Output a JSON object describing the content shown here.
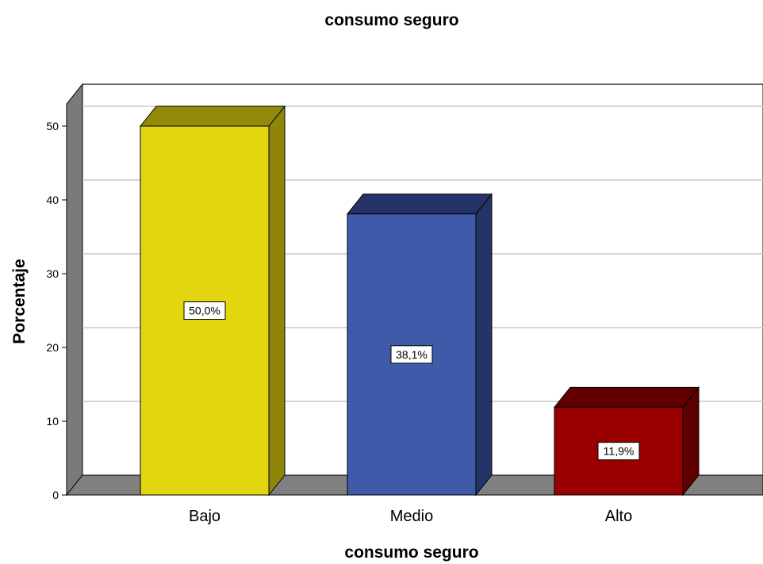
{
  "chart_data": {
    "type": "bar",
    "title": "consumo seguro",
    "xlabel": "consumo seguro",
    "ylabel": "Porcentaje",
    "categories": [
      "Bajo",
      "Medio",
      "Alto"
    ],
    "values": [
      50.0,
      38.1,
      11.9
    ],
    "data_labels": [
      "50,0%",
      "38,1%",
      "11,9%"
    ],
    "ylim": [
      0,
      50
    ],
    "yticks": [
      0,
      10,
      20,
      30,
      40,
      50
    ],
    "grid": true,
    "style": "3d",
    "colors": {
      "front": [
        "#e3d60f",
        "#3f5aa8",
        "#9b0000"
      ],
      "top": [
        "#918909",
        "#26336a",
        "#600000"
      ],
      "side": [
        "#8e850a",
        "#253468",
        "#5e0000"
      ],
      "floor": "#808080",
      "wall": "#7a7a7a",
      "grid": "#c8c8c8"
    }
  }
}
